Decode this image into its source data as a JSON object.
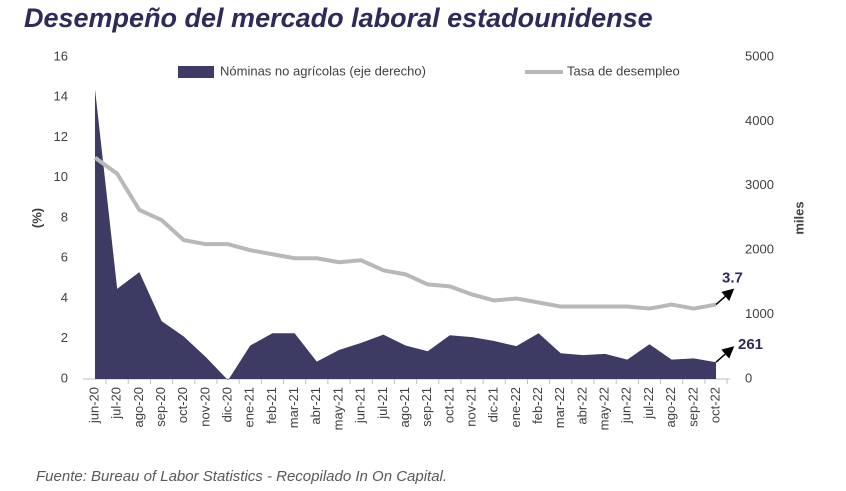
{
  "chart_data": {
    "type": "area-line",
    "title": "Desempeño del mercado laboral estadounidense",
    "y_label": "(%)",
    "y2_label": "miles",
    "source": "Fuente: Bureau of Labor Statistics - Recopilado In On Capital.",
    "categories": [
      "jun-20",
      "jul-20",
      "ago-20",
      "sep-20",
      "oct-20",
      "nov-20",
      "dic-20",
      "ene-21",
      "feb-21",
      "mar-21",
      "abr-21",
      "may-21",
      "jun-21",
      "jul-21",
      "ago-21",
      "sep-21",
      "oct-21",
      "nov-21",
      "dic-21",
      "ene-22",
      "feb-22",
      "mar-22",
      "abr-22",
      "may-22",
      "jun-22",
      "jul-22",
      "ago-22",
      "sep-22",
      "oct-22"
    ],
    "series": [
      {
        "name": "Nóminas no agrícolas (eje derecho)",
        "color": "#3d3a63",
        "axis": "y2",
        "values": [
          4500,
          1400,
          1660,
          900,
          660,
          340,
          -20,
          520,
          710,
          710,
          270,
          450,
          560,
          690,
          520,
          430,
          680,
          650,
          590,
          510,
          710,
          400,
          370,
          390,
          300,
          540,
          300,
          320,
          261
        ]
      },
      {
        "name": "Tasa de desempleo",
        "color": "#b8b8b8",
        "values": [
          11.0,
          10.2,
          8.4,
          7.9,
          6.9,
          6.7,
          6.7,
          6.4,
          6.2,
          6.0,
          6.0,
          5.8,
          5.9,
          5.4,
          5.2,
          4.7,
          4.6,
          4.2,
          3.9,
          4.0,
          3.8,
          3.6,
          3.6,
          3.6,
          3.6,
          3.5,
          3.7,
          3.5,
          3.7
        ]
      }
    ],
    "ylim": [
      0,
      16
    ],
    "yticks": [
      0,
      2,
      4,
      6,
      8,
      10,
      12,
      14,
      16
    ],
    "y2lim": [
      0,
      5000
    ],
    "y2ticks": [
      0,
      1000,
      2000,
      3000,
      4000,
      5000
    ],
    "legend": "top"
  }
}
